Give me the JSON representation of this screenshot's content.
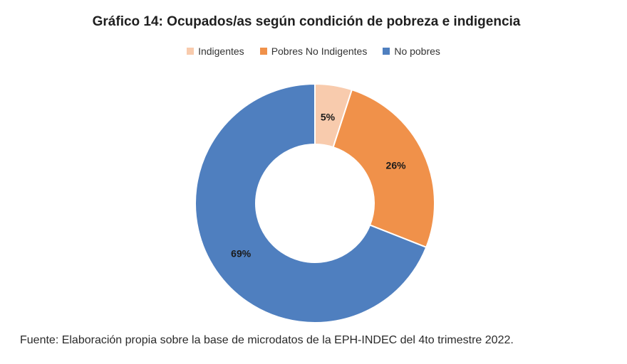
{
  "title": "Gráfico 14: Ocupados/as según condición de pobreza e indigencia",
  "source": "Fuente: Elaboración propia sobre la base de microdatos de la EPH-INDEC del 4to trimestre 2022.",
  "chart_data": {
    "type": "pie",
    "title": "Gráfico 14: Ocupados/as según condición de pobreza e indigencia",
    "legend_position": "top",
    "slices": [
      {
        "label": "Indigentes",
        "value": 5,
        "display": "5%",
        "color": "#f8cbad"
      },
      {
        "label": "Pobres No Indigentes",
        "value": 26,
        "display": "26%",
        "color": "#f0914a"
      },
      {
        "label": "No pobres",
        "value": 69,
        "display": "69%",
        "color": "#4f7fbf"
      }
    ]
  }
}
